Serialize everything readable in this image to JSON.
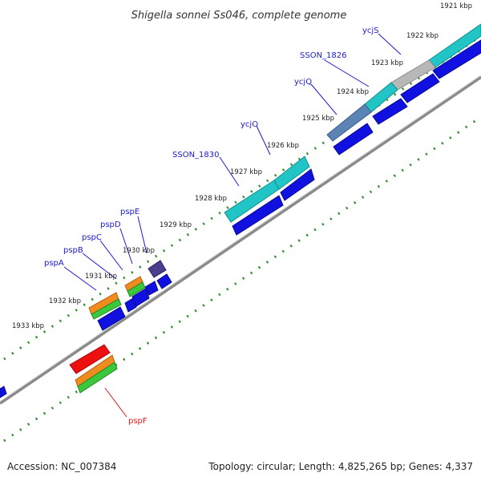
{
  "title": "Shigella sonnei Ss046, complete genome",
  "footer": {
    "accession": "Accession: NC_007384",
    "info": "Topology: circular; Length: 4,825,265 bp; Genes: 4,337"
  },
  "colors": {
    "backbone": "#8a8a8a",
    "tick": "#2b8a2b",
    "cds": "#1010e0",
    "gene_teal": "#22c5c5",
    "gene_gray": "#b8b8b8",
    "gene_steel": "#5b83b3",
    "gene_orange": "#f08c1e",
    "gene_green": "#3cc83c",
    "gene_purple": "#4a3f8c",
    "gene_red": "#ee1010",
    "label_blue": "#1a1ad0",
    "label_red": "#e01818"
  },
  "kbp_labels": [
    "1921 kbp",
    "1922 kbp",
    "1923 kbp",
    "1924 kbp",
    "1925 kbp",
    "1926 kbp",
    "1927 kbp",
    "1928 kbp",
    "1929 kbp",
    "1930 kbp",
    "1931 kbp",
    "1932 kbp",
    "1933 kbp"
  ],
  "gene_labels": [
    "ycjS",
    "SSON_1826",
    "ycjQ",
    "ycjO",
    "SSON_1830",
    "pspE",
    "pspD",
    "pspC",
    "pspB",
    "pspA",
    "pspF"
  ]
}
